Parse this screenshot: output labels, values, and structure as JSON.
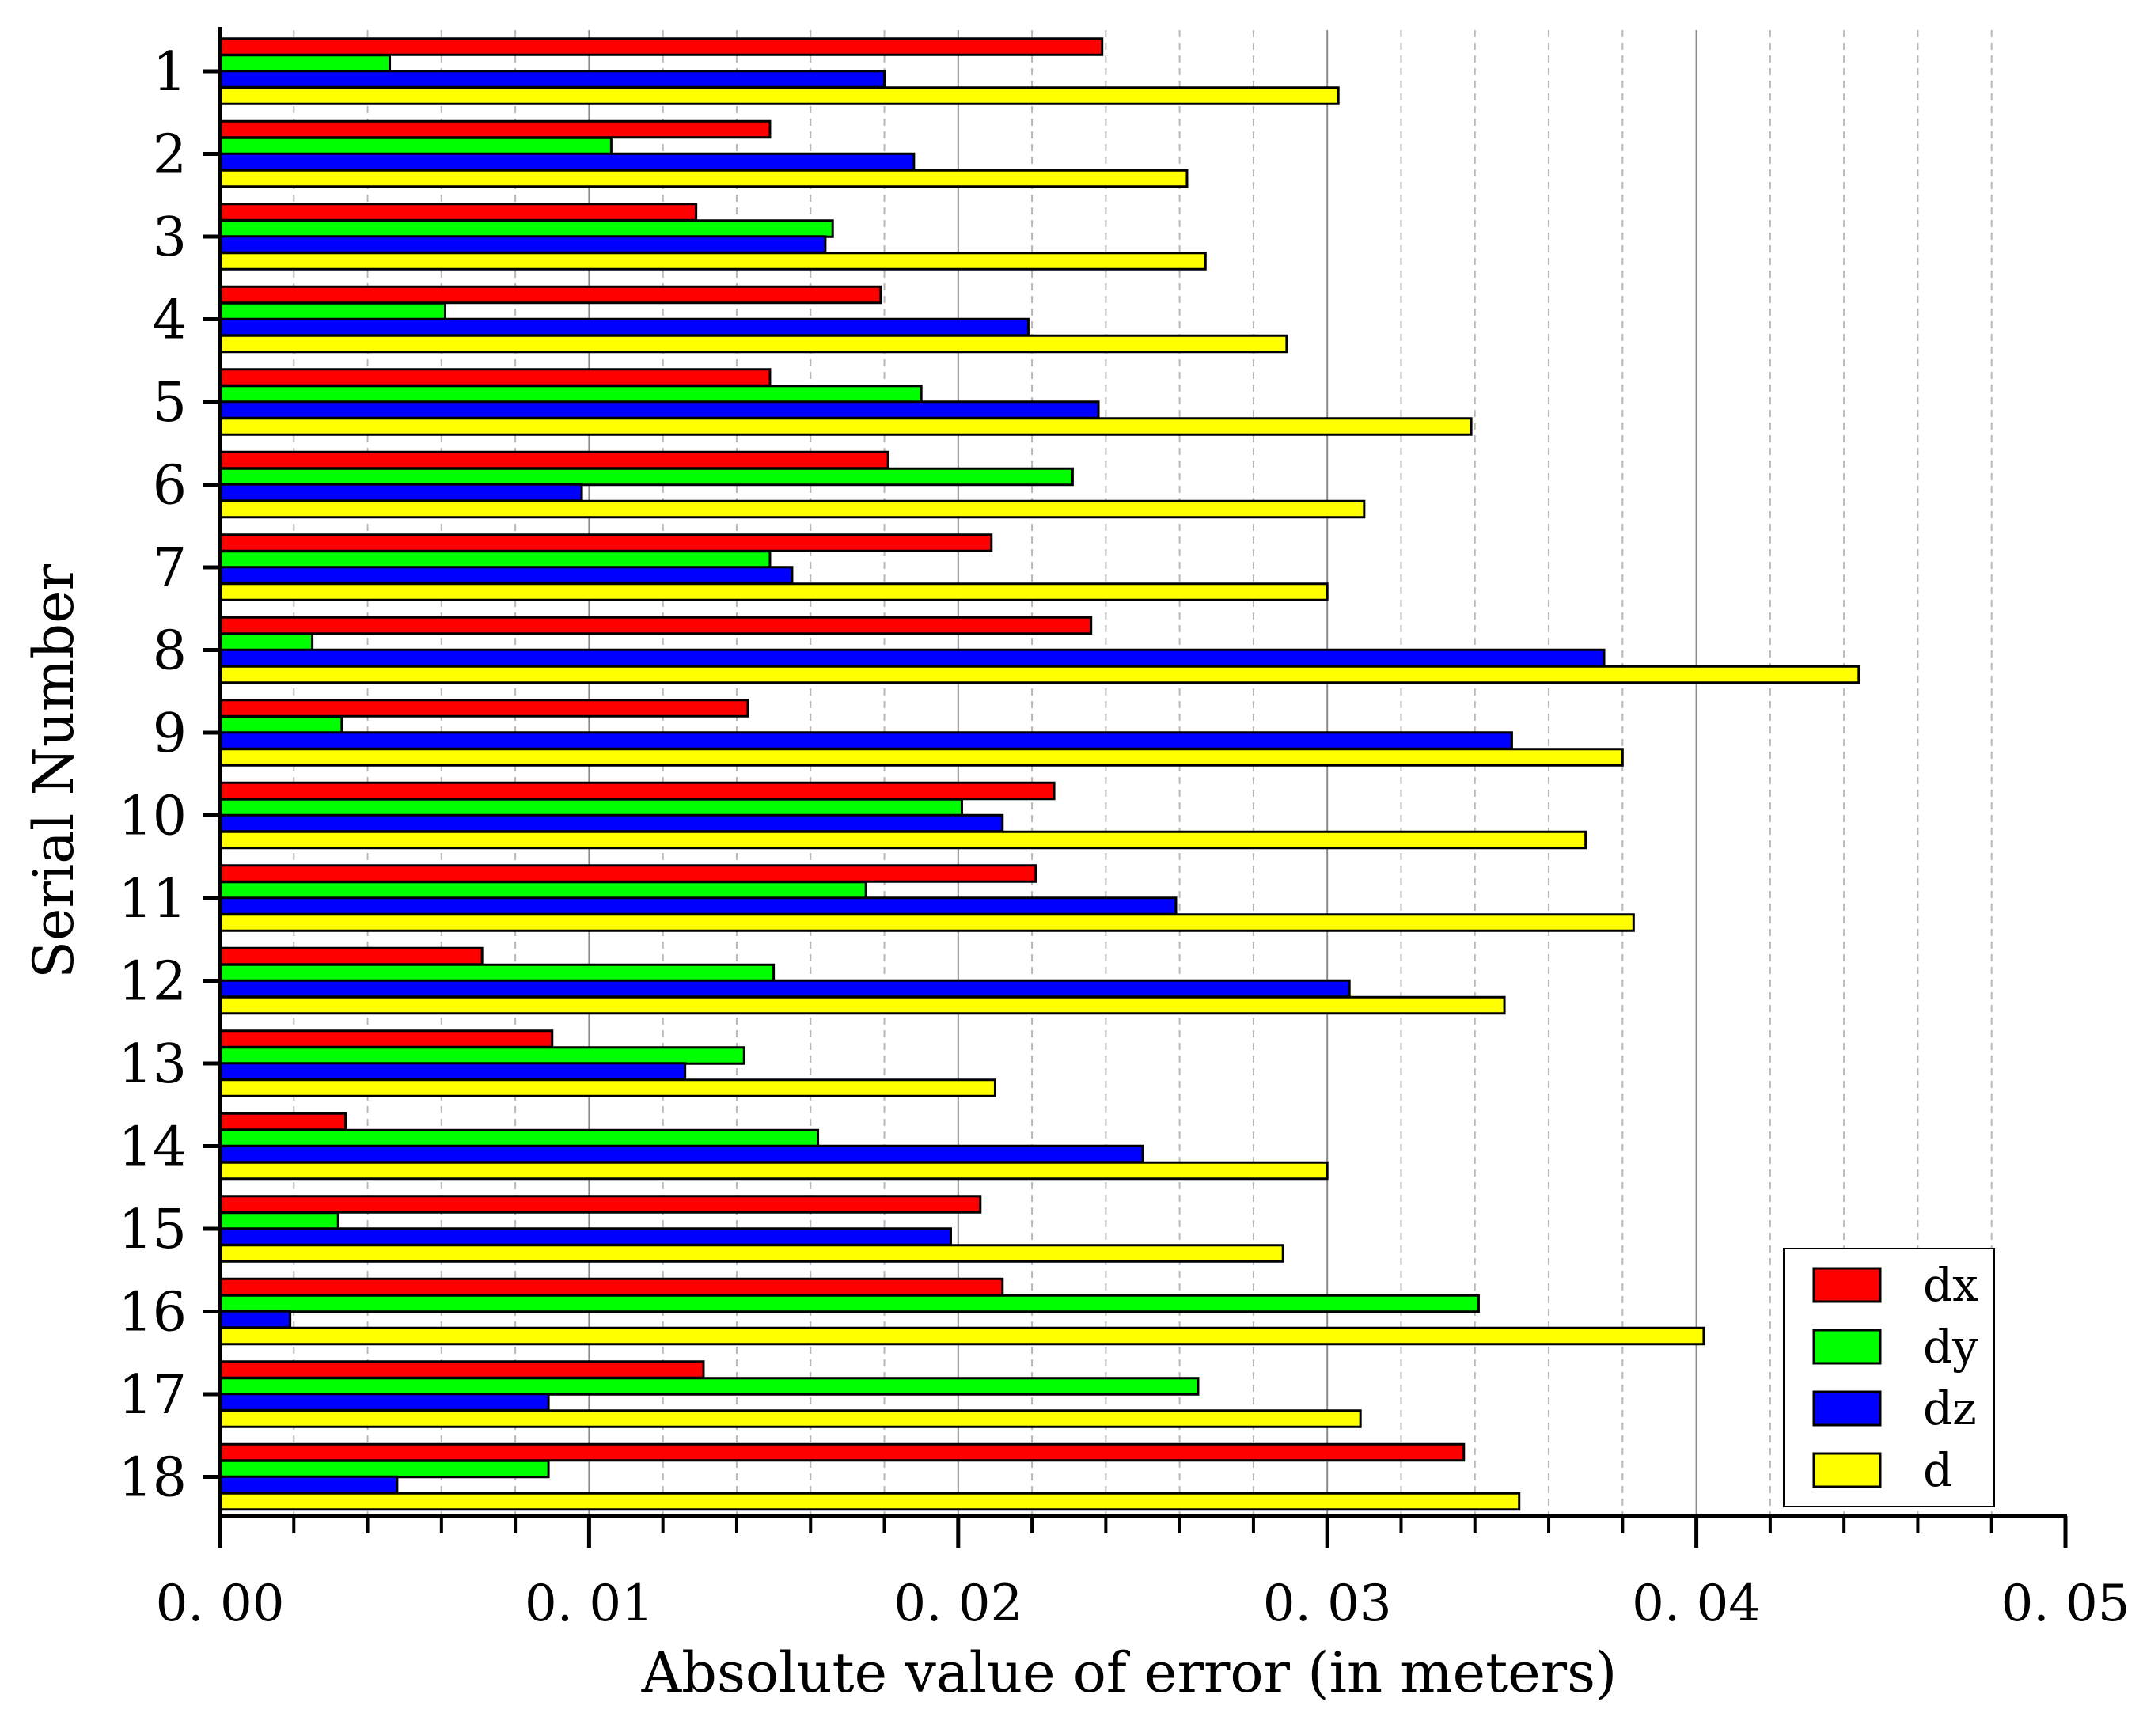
{
  "chart_data": {
    "type": "bar",
    "orientation": "horizontal",
    "title": "",
    "xlabel": "Absolute value of error (in meters)",
    "ylabel": "Serial Number",
    "xlim": [
      0,
      0.05
    ],
    "x_ticks": [
      0.0,
      0.01,
      0.02,
      0.03,
      0.04,
      0.05
    ],
    "x_tick_labels": [
      "0. 00",
      "0. 01",
      "0. 02",
      "0. 03",
      "0. 04",
      "0. 05"
    ],
    "x_grid_major": [
      0.01,
      0.02,
      0.03,
      0.04
    ],
    "x_grid_minor": [
      0.002,
      0.004,
      0.006,
      0.008,
      0.012,
      0.014,
      0.016,
      0.018,
      0.022,
      0.024,
      0.026,
      0.028,
      0.032,
      0.034,
      0.036,
      0.038,
      0.042,
      0.044,
      0.046,
      0.048
    ],
    "categories": [
      "1",
      "2",
      "3",
      "4",
      "5",
      "6",
      "7",
      "8",
      "9",
      "10",
      "11",
      "12",
      "13",
      "14",
      "15",
      "16",
      "17",
      "18"
    ],
    "legend_position": "bottom-right",
    "series": [
      {
        "name": "dx",
        "color": "#ff0000",
        "values": [
          0.0239,
          0.0149,
          0.0129,
          0.0179,
          0.0149,
          0.0181,
          0.0209,
          0.0236,
          0.0143,
          0.0226,
          0.0221,
          0.0071,
          0.009,
          0.0034,
          0.0206,
          0.0212,
          0.0131,
          0.0337
        ]
      },
      {
        "name": "dy",
        "color": "#00ff00",
        "values": [
          0.0046,
          0.0106,
          0.0166,
          0.0061,
          0.019,
          0.0231,
          0.0149,
          0.0025,
          0.0033,
          0.0201,
          0.0175,
          0.015,
          0.0142,
          0.0162,
          0.0032,
          0.0341,
          0.0265,
          0.0089
        ]
      },
      {
        "name": "dz",
        "color": "#0000ff",
        "values": [
          0.018,
          0.0188,
          0.0164,
          0.0219,
          0.0238,
          0.0098,
          0.0155,
          0.0375,
          0.035,
          0.0212,
          0.0259,
          0.0306,
          0.0126,
          0.025,
          0.0198,
          0.0019,
          0.0089,
          0.0048
        ]
      },
      {
        "name": "d",
        "color": "#ffff00",
        "values": [
          0.0303,
          0.0262,
          0.0267,
          0.0289,
          0.0339,
          0.031,
          0.03,
          0.0444,
          0.038,
          0.037,
          0.0383,
          0.0348,
          0.021,
          0.03,
          0.0288,
          0.0402,
          0.0309,
          0.0352
        ]
      }
    ]
  }
}
